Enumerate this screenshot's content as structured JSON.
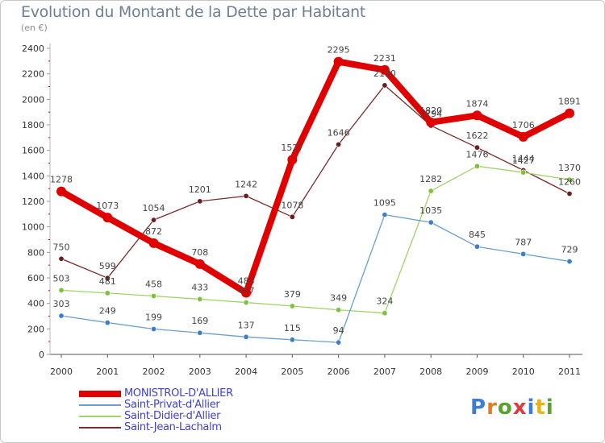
{
  "header": {
    "title": "Evolution du Montant de la Dette par Habitant",
    "subtitle": "(en €)"
  },
  "logo": {
    "text": "Proxiti",
    "letter_colors": [
      "#3a7fd5",
      "#e87a1e",
      "#5aa02c",
      "#e03a3a",
      "#3a7fd5",
      "#e8b21e",
      "#5aa02c"
    ]
  },
  "chart_data": {
    "type": "line",
    "x": [
      "2000",
      "2001",
      "2002",
      "2003",
      "2004",
      "2005",
      "2006",
      "2007",
      "2008",
      "2009",
      "2010",
      "2011"
    ],
    "ylim": [
      0,
      2400
    ],
    "yticks": [
      "0",
      "200",
      "400",
      "600",
      "800",
      "1000",
      "1200",
      "1400",
      "1600",
      "1800",
      "2000",
      "2200",
      "2400"
    ],
    "grid": false,
    "legend_position": "bottom-left",
    "series": [
      {
        "name": "MONISTROL-D'ALLIER",
        "color": "#e00000",
        "values": [
          1278,
          1073,
          872,
          708,
          483,
          1527,
          2295,
          2231,
          1820,
          1874,
          1706,
          1891
        ],
        "labels": [
          "1278",
          "1073",
          "872",
          "708",
          "483",
          "1527",
          "2295",
          "2231",
          "1820",
          "1874",
          "1706",
          "1891"
        ]
      },
      {
        "name": "Saint-Privat-d'Allier",
        "color": "#6a9fcf",
        "marker": "#3d7fc4",
        "values": [
          303,
          249,
          199,
          169,
          137,
          115,
          94,
          1095,
          1035,
          845,
          787,
          729
        ],
        "labels": [
          "303",
          "249",
          "199",
          "169",
          "137",
          "115",
          "94",
          "1095",
          "1035",
          "845",
          "787",
          "729"
        ]
      },
      {
        "name": "Saint-Didier-d'Allier",
        "color": "#9ed468",
        "marker": "#7dc23a",
        "values": [
          503,
          481,
          458,
          433,
          407,
          379,
          349,
          324,
          1282,
          1476,
          1427,
          1370
        ],
        "labels": [
          "503",
          "481",
          "458",
          "433",
          "407",
          "379",
          "349",
          "324",
          "1282",
          "1476",
          "1427",
          "1370"
        ]
      },
      {
        "name": "Saint-Jean-Lachalm",
        "color": "#7a2a2a",
        "marker": "#6b1e1e",
        "values": [
          750,
          599,
          1054,
          1201,
          1242,
          1078,
          1646,
          2110,
          1794,
          1622,
          1444,
          1260
        ],
        "labels": [
          "750",
          "599",
          "1054",
          "1201",
          "1242",
          "1078",
          "1646",
          "2110",
          "1794",
          "1622",
          "1444",
          "1260"
        ]
      }
    ]
  }
}
